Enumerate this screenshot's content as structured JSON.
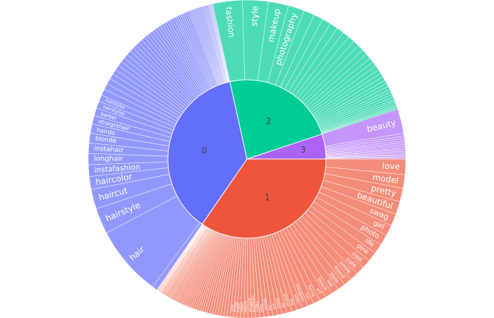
{
  "chart_data": {
    "type": "sunburst",
    "center": {
      "x": 350,
      "y": 225,
      "r_inner": 112,
      "r_outer": 225
    },
    "clusters": [
      {
        "name": "1",
        "color": "#EF553B",
        "leaf_color": "#F38C78",
        "start_deg": 90,
        "end_deg": 214.6,
        "leaves": [
          {
            "label": "love",
            "w": 3
          },
          {
            "label": "model",
            "w": 2.6
          },
          {
            "label": "pretty",
            "w": 2.6
          },
          {
            "label": "beautiful",
            "w": 2.5
          },
          {
            "label": "swag",
            "w": 2.3
          },
          {
            "label": "girl",
            "w": 2.1
          },
          {
            "label": "photo",
            "w": 2.1
          },
          {
            "label": "life",
            "w": 1.9
          },
          {
            "label": "pink",
            "w": 1.8
          },
          {
            "label": "cool",
            "w": 1.7
          },
          {
            "label": "cute",
            "w": 1.7
          },
          {
            "label": "smile",
            "w": 1.6
          },
          {
            "label": "friend",
            "w": 1.5
          },
          {
            "label": "style",
            "w": 1.5
          },
          {
            "label": "hot",
            "w": 1.4
          },
          {
            "label": "beach",
            "w": 1.4
          },
          {
            "label": "art",
            "w": 1.3
          },
          {
            "label": "funny",
            "w": 1.3
          },
          {
            "label": "fun",
            "w": 1.2
          },
          {
            "label": "instagram",
            "w": 1.1
          },
          {
            "label": "selfie",
            "w": 1.1
          },
          {
            "label": "dog",
            "w": 1.0
          },
          {
            "label": "portrait",
            "w": 1.0
          },
          {
            "label": "tbt",
            "w": 0.9
          },
          {
            "label": "family",
            "w": 0.9
          },
          {
            "label": "sun",
            "w": 0.9
          },
          {
            "label": "fail",
            "w": 0.85
          },
          {
            "label": "fashion",
            "w": 0.85
          },
          {
            "label": "food",
            "w": 0.8
          },
          {
            "label": "happy",
            "w": 0.8
          },
          {
            "label": "instagood",
            "w": 0.75
          },
          {
            "label": "summer",
            "w": 0.75
          },
          {
            "label": "nature",
            "w": 0.7
          },
          {
            "label": "music",
            "w": 0.7
          },
          {
            "label": "night",
            "w": 0.7
          },
          {
            "label": "travel",
            "w": 0.65
          },
          {
            "label": "love",
            "w": 0.65
          },
          {
            "label": "",
            "w": 0.6
          },
          {
            "label": "",
            "w": 0.6
          },
          {
            "label": "",
            "w": 0.6
          },
          {
            "label": "",
            "w": 0.55
          },
          {
            "label": "",
            "w": 0.55
          },
          {
            "label": "",
            "w": 0.5
          },
          {
            "label": "",
            "w": 0.5
          },
          {
            "label": "",
            "w": 0.5
          },
          {
            "label": "",
            "w": 0.45
          },
          {
            "label": "",
            "w": 0.45
          },
          {
            "label": "",
            "w": 0.45
          },
          {
            "label": "",
            "w": 0.4
          },
          {
            "label": "",
            "w": 0.4
          },
          {
            "label": "",
            "w": 0.4
          },
          {
            "label": "",
            "w": 0.4
          },
          {
            "label": "",
            "w": 0.35
          },
          {
            "label": "",
            "w": 0.35
          },
          {
            "label": "",
            "w": 0.35
          },
          {
            "label": "",
            "w": 0.35
          },
          {
            "label": "",
            "w": 0.3
          },
          {
            "label": "",
            "w": 0.3
          },
          {
            "label": "",
            "w": 0.3
          },
          {
            "label": "",
            "w": 0.3
          },
          {
            "label": "",
            "w": 0.3
          },
          {
            "label": "",
            "w": 0.25
          },
          {
            "label": "",
            "w": 0.25
          },
          {
            "label": "",
            "w": 0.25
          },
          {
            "label": "",
            "w": 0.25
          },
          {
            "label": "",
            "w": 0.25
          },
          {
            "label": "",
            "w": 0.2
          },
          {
            "label": "",
            "w": 0.2
          },
          {
            "label": "",
            "w": 0.2
          },
          {
            "label": "",
            "w": 0.2
          },
          {
            "label": "",
            "w": 0.2
          },
          {
            "label": "",
            "w": 0.2
          },
          {
            "label": "",
            "w": 0.2
          },
          {
            "label": "",
            "w": 0.15
          },
          {
            "label": "",
            "w": 0.15
          },
          {
            "label": "",
            "w": 0.15
          },
          {
            "label": "",
            "w": 0.15
          },
          {
            "label": "",
            "w": 0.15
          },
          {
            "label": "",
            "w": 0.15
          },
          {
            "label": "",
            "w": 0.15
          },
          {
            "label": "",
            "w": 0.1
          },
          {
            "label": "",
            "w": 0.1
          },
          {
            "label": "",
            "w": 0.1
          },
          {
            "label": "",
            "w": 0.1
          },
          {
            "label": "",
            "w": 0.1
          },
          {
            "label": "",
            "w": 0.1
          },
          {
            "label": "",
            "w": 0.1
          },
          {
            "label": "",
            "w": 0.1
          },
          {
            "label": "",
            "w": 0.1
          },
          {
            "label": "",
            "w": 0.1
          }
        ]
      },
      {
        "name": "0",
        "color": "#636EFA",
        "leaf_color": "#9298FB",
        "start_deg": 214.6,
        "end_deg": 347.5,
        "leaves": [
          {
            "label": "",
            "w": 0.4
          },
          {
            "label": "hair",
            "w": 5.4
          },
          {
            "label": "hairstyle",
            "w": 2.0
          },
          {
            "label": "haircut",
            "w": 1.5
          },
          {
            "label": "haircolor",
            "w": 1.0
          },
          {
            "label": "instafashion",
            "w": 0.9
          },
          {
            "label": "longhair",
            "w": 0.85
          },
          {
            "label": "instahair",
            "w": 0.8
          },
          {
            "label": "blonde",
            "w": 0.75
          },
          {
            "label": "hairdo",
            "w": 0.7
          },
          {
            "label": "straighthair",
            "w": 0.65
          },
          {
            "label": "barber",
            "w": 0.6
          },
          {
            "label": "hairstylist",
            "w": 0.55
          },
          {
            "label": "hairstyles",
            "w": 0.5
          },
          {
            "label": "",
            "w": 0.5
          },
          {
            "label": "",
            "w": 0.45
          },
          {
            "label": "",
            "w": 0.45
          },
          {
            "label": "",
            "w": 0.4
          },
          {
            "label": "",
            "w": 0.4
          },
          {
            "label": "",
            "w": 0.4
          },
          {
            "label": "",
            "w": 0.35
          },
          {
            "label": "",
            "w": 0.35
          },
          {
            "label": "",
            "w": 0.35
          },
          {
            "label": "",
            "w": 0.35
          },
          {
            "label": "",
            "w": 0.3
          },
          {
            "label": "",
            "w": 0.3
          },
          {
            "label": "",
            "w": 0.3
          },
          {
            "label": "",
            "w": 0.3
          },
          {
            "label": "",
            "w": 0.3
          },
          {
            "label": "",
            "w": 0.25
          },
          {
            "label": "",
            "w": 0.25
          },
          {
            "label": "",
            "w": 0.25
          },
          {
            "label": "",
            "w": 0.25
          },
          {
            "label": "",
            "w": 0.25
          },
          {
            "label": "",
            "w": 0.2
          },
          {
            "label": "",
            "w": 0.2
          },
          {
            "label": "",
            "w": 0.2
          },
          {
            "label": "",
            "w": 0.2
          },
          {
            "label": "",
            "w": 0.2
          },
          {
            "label": "",
            "w": 0.2
          },
          {
            "label": "",
            "w": 0.2
          },
          {
            "label": "",
            "w": 0.15
          },
          {
            "label": "",
            "w": 0.15
          },
          {
            "label": "",
            "w": 0.15
          },
          {
            "label": "",
            "w": 0.15
          },
          {
            "label": "",
            "w": 0.15
          },
          {
            "label": "",
            "w": 0.15
          },
          {
            "label": "",
            "w": 0.15
          },
          {
            "label": "",
            "w": 0.15
          },
          {
            "label": "",
            "w": 0.1
          },
          {
            "label": "",
            "w": 0.1
          },
          {
            "label": "",
            "w": 0.1
          },
          {
            "label": "",
            "w": 0.1
          },
          {
            "label": "",
            "w": 0.1
          },
          {
            "label": "",
            "w": 0.1
          },
          {
            "label": "",
            "w": 0.1
          },
          {
            "label": "",
            "w": 0.1
          },
          {
            "label": "",
            "w": 0.1
          },
          {
            "label": "",
            "w": 0.1
          },
          {
            "label": "",
            "w": 0.1
          },
          {
            "label": "",
            "w": 0.08
          },
          {
            "label": "",
            "w": 0.08
          },
          {
            "label": "",
            "w": 0.08
          },
          {
            "label": "",
            "w": 0.08
          },
          {
            "label": "",
            "w": 0.08
          },
          {
            "label": "",
            "w": 0.08
          },
          {
            "label": "",
            "w": 0.06
          },
          {
            "label": "",
            "w": 0.06
          },
          {
            "label": "",
            "w": 0.06
          },
          {
            "label": "",
            "w": 0.06
          },
          {
            "label": "",
            "w": 0.06
          },
          {
            "label": "",
            "w": 0.06
          }
        ]
      },
      {
        "name": "2",
        "color": "#00CC96",
        "leaf_color": "#4DDBB6",
        "start_deg": 347.5,
        "end_deg": 431.7,
        "leaves": [
          {
            "label": "fashion",
            "w": 2.2
          },
          {
            "label": "style",
            "w": 1.9
          },
          {
            "label": "makeup",
            "w": 1.5
          },
          {
            "label": "photography",
            "w": 1.2
          },
          {
            "label": "",
            "w": 0.8
          },
          {
            "label": "",
            "w": 0.7
          },
          {
            "label": "",
            "w": 0.65
          },
          {
            "label": "",
            "w": 0.6
          },
          {
            "label": "",
            "w": 0.55
          },
          {
            "label": "",
            "w": 0.5
          },
          {
            "label": "",
            "w": 0.5
          },
          {
            "label": "",
            "w": 0.45
          },
          {
            "label": "",
            "w": 0.45
          },
          {
            "label": "",
            "w": 0.4
          },
          {
            "label": "",
            "w": 0.4
          },
          {
            "label": "",
            "w": 0.35
          },
          {
            "label": "",
            "w": 0.35
          },
          {
            "label": "",
            "w": 0.35
          },
          {
            "label": "",
            "w": 0.3
          },
          {
            "label": "",
            "w": 0.3
          },
          {
            "label": "",
            "w": 0.3
          },
          {
            "label": "",
            "w": 0.25
          },
          {
            "label": "",
            "w": 0.25
          },
          {
            "label": "",
            "w": 0.25
          },
          {
            "label": "",
            "w": 0.2
          },
          {
            "label": "",
            "w": 0.2
          },
          {
            "label": "",
            "w": 0.2
          },
          {
            "label": "",
            "w": 0.2
          },
          {
            "label": "",
            "w": 0.15
          },
          {
            "label": "",
            "w": 0.15
          },
          {
            "label": "",
            "w": 0.15
          },
          {
            "label": "",
            "w": 0.1
          },
          {
            "label": "",
            "w": 0.1
          },
          {
            "label": "",
            "w": 0.1
          }
        ]
      },
      {
        "name": "3",
        "color": "#AB63FA",
        "leaf_color": "#C496FB",
        "start_deg": 431.7,
        "end_deg": 450,
        "leaves": [
          {
            "label": "beauty",
            "w": 1.3
          },
          {
            "label": "",
            "w": 0.15
          },
          {
            "label": "",
            "w": 0.12
          },
          {
            "label": "",
            "w": 0.12
          },
          {
            "label": "",
            "w": 0.1
          },
          {
            "label": "",
            "w": 0.1
          },
          {
            "label": "",
            "w": 0.1
          },
          {
            "label": "",
            "w": 0.1
          },
          {
            "label": "",
            "w": 0.08
          },
          {
            "label": "",
            "w": 0.08
          },
          {
            "label": "",
            "w": 0.08
          },
          {
            "label": "",
            "w": 0.08
          },
          {
            "label": "",
            "w": 0.06
          },
          {
            "label": "",
            "w": 0.06
          },
          {
            "label": "",
            "w": 0.06
          },
          {
            "label": "",
            "w": 0.06
          }
        ]
      }
    ]
  }
}
